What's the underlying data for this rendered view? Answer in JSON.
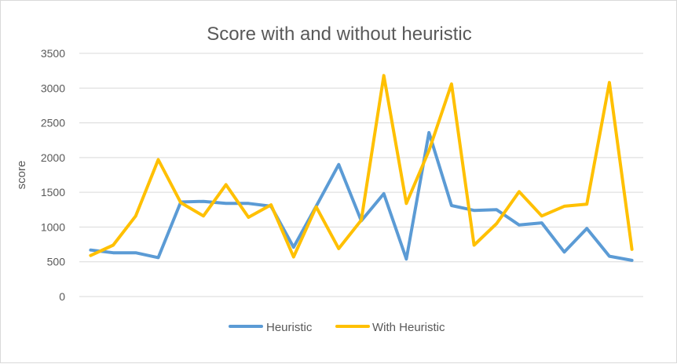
{
  "chart_data": {
    "type": "line",
    "title": "Score with and without heuristic",
    "xlabel": "",
    "ylabel": "score",
    "ylim": [
      0,
      3500
    ],
    "yticks": [
      0,
      500,
      1000,
      1500,
      2000,
      2500,
      3000,
      3500
    ],
    "grid": true,
    "legend_position": "bottom",
    "x": [
      1,
      2,
      3,
      4,
      5,
      6,
      7,
      8,
      9,
      10,
      11,
      12,
      13,
      14,
      15,
      16,
      17,
      18,
      19,
      20,
      21,
      22,
      23,
      24,
      25
    ],
    "series": [
      {
        "name": "Heuristic",
        "color": "#5b9bd5",
        "values": [
          670,
          630,
          630,
          560,
          1360,
          1370,
          1340,
          1340,
          1300,
          710,
          1300,
          1900,
          1090,
          1480,
          540,
          2360,
          1310,
          1240,
          1250,
          1030,
          1060,
          640,
          980,
          580,
          520
        ]
      },
      {
        "name": "With Heuristic",
        "color": "#ffc000",
        "values": [
          590,
          740,
          1160,
          1970,
          1350,
          1160,
          1610,
          1140,
          1320,
          570,
          1290,
          690,
          1100,
          3180,
          1340,
          2100,
          3060,
          740,
          1050,
          1510,
          1160,
          1300,
          1330,
          3080,
          680
        ]
      }
    ]
  }
}
